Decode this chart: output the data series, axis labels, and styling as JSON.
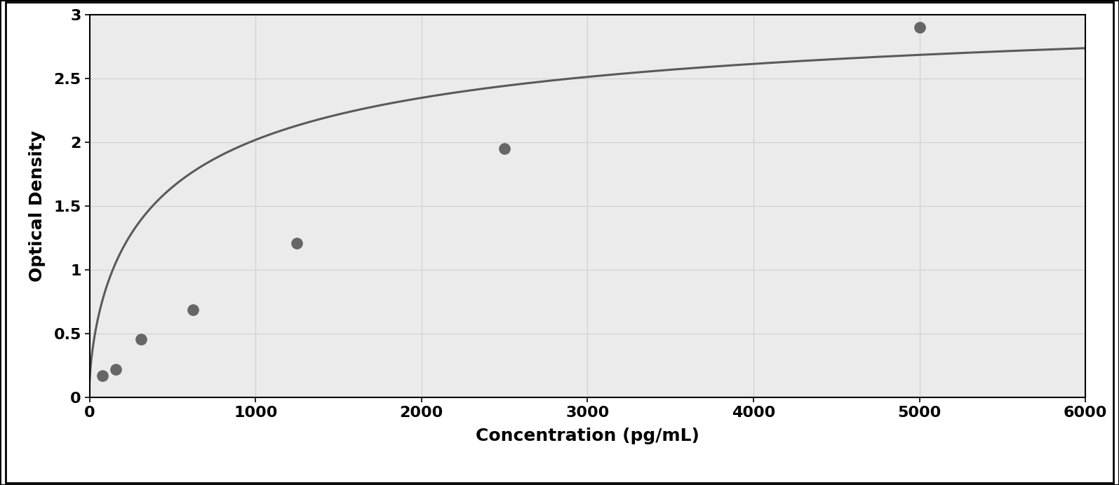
{
  "x_data": [
    78,
    156,
    312,
    625,
    1250,
    2500,
    5000
  ],
  "y_data": [
    0.17,
    0.22,
    0.46,
    0.69,
    1.21,
    1.95,
    2.9
  ],
  "xlabel": "Concentration (pg/mL)",
  "ylabel": "Optical Density",
  "xlim": [
    0,
    6000
  ],
  "ylim": [
    0,
    3.0
  ],
  "xticks": [
    0,
    1000,
    2000,
    3000,
    4000,
    5000,
    6000
  ],
  "yticks": [
    0,
    0.5,
    1.0,
    1.5,
    2.0,
    2.5,
    3.0
  ],
  "marker_color": "#666666",
  "line_color": "#5a5a5a",
  "background_color": "#ffffff",
  "plot_bg_color": "#ebebeb",
  "grid_color": "#d0d0d0",
  "xlabel_fontsize": 18,
  "ylabel_fontsize": 18,
  "tick_fontsize": 16,
  "marker_size": 11,
  "line_width": 2.2
}
